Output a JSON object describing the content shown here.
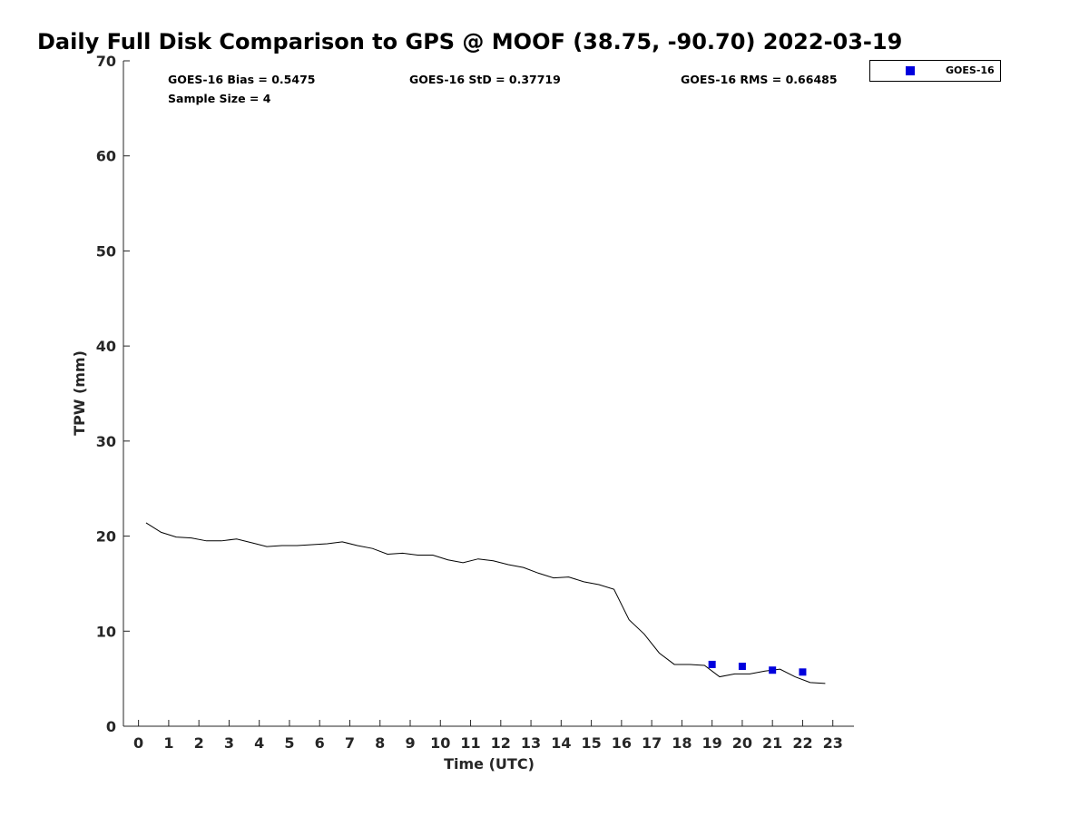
{
  "stats": {
    "bias": "GOES-16 Bias = 0.5475",
    "std": "GOES-16 StD = 0.37719",
    "rms": "GOES-16 RMS = 0.66485",
    "sample": "Sample Size = 4"
  },
  "colors": {
    "marker": "#0000dd",
    "line": "#000000",
    "axis": "#262626"
  },
  "chart_data": {
    "type": "line",
    "title": "Daily Full Disk Comparison to GPS @ MOOF (38.75, -90.70) 2022-03-19",
    "xlabel": "Time (UTC)",
    "ylabel": "TPW (mm)",
    "xlim": [
      -0.5,
      23.7
    ],
    "ylim": [
      0,
      70
    ],
    "x_ticks": [
      0,
      1,
      2,
      3,
      4,
      5,
      6,
      7,
      8,
      9,
      10,
      11,
      12,
      13,
      14,
      15,
      16,
      17,
      18,
      19,
      20,
      21,
      22,
      23
    ],
    "y_ticks": [
      0,
      10,
      20,
      30,
      40,
      50,
      60,
      70
    ],
    "grid": false,
    "legend_position": "outside-top-right",
    "series": [
      {
        "type": "line",
        "x": [
          0.25,
          0.75,
          1.25,
          1.75,
          2.25,
          2.75,
          3.25,
          3.75,
          4.25,
          4.75,
          5.25,
          5.75,
          6.25,
          6.75,
          7.25,
          7.75,
          8.25,
          8.75,
          9.25,
          9.75,
          10.25,
          10.75,
          11.25,
          11.75,
          12.25,
          12.75,
          13.25,
          13.75,
          14.25,
          14.75,
          15.25,
          15.75,
          16.25,
          16.75,
          17.25,
          17.75,
          18.25,
          18.75,
          19.25,
          19.75,
          20.25,
          20.75,
          21.25,
          21.75,
          22.25,
          22.75
        ],
        "values": [
          21.4,
          20.4,
          19.9,
          19.8,
          19.5,
          19.5,
          19.7,
          19.3,
          18.9,
          19.0,
          19.0,
          19.1,
          19.2,
          19.4,
          19.0,
          18.7,
          18.1,
          18.2,
          18.0,
          18.0,
          17.5,
          17.2,
          17.6,
          17.4,
          17.0,
          16.7,
          16.1,
          15.6,
          15.7,
          15.2,
          14.9,
          14.4,
          11.2,
          9.7,
          7.7,
          6.5,
          6.5,
          6.4,
          5.2,
          5.5,
          5.5,
          5.8,
          6.0,
          5.2,
          4.6,
          4.5
        ]
      },
      {
        "name": "GOES-16",
        "type": "scatter",
        "x": [
          19,
          20,
          21,
          22
        ],
        "values": [
          6.5,
          6.3,
          5.9,
          5.7
        ]
      }
    ]
  }
}
